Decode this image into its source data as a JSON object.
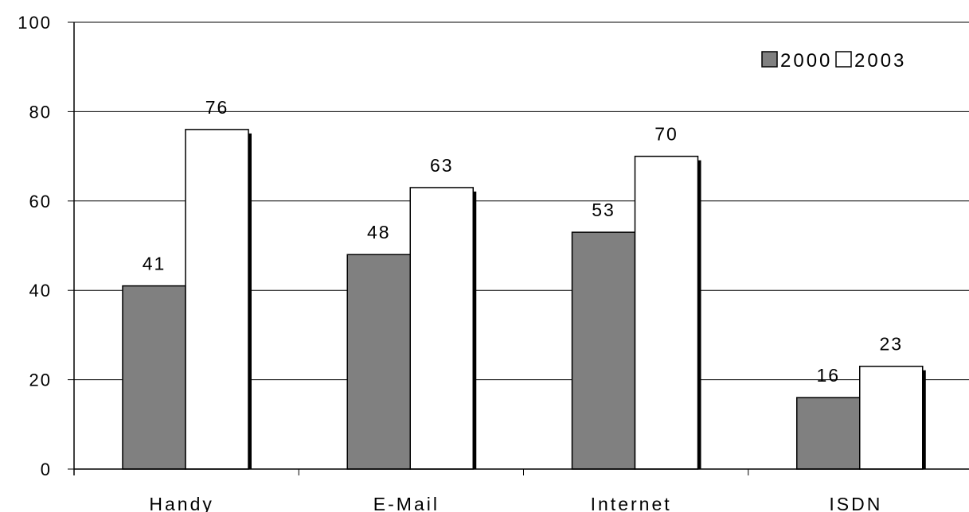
{
  "chart_data": {
    "type": "bar",
    "categories": [
      "Handy",
      "E-Mail",
      "Internet",
      "ISDN"
    ],
    "series": [
      {
        "name": "2000",
        "values": [
          41,
          48,
          53,
          16
        ],
        "color": "#808080"
      },
      {
        "name": "2003",
        "values": [
          76,
          63,
          70,
          23
        ],
        "color": "#ffffff"
      }
    ],
    "y_ticks": [
      "0",
      "20",
      "40",
      "60",
      "80",
      "100"
    ],
    "ylim": [
      0,
      100
    ],
    "grid": true,
    "legend": "top-right",
    "title": "",
    "xlabel": "",
    "ylabel": ""
  }
}
